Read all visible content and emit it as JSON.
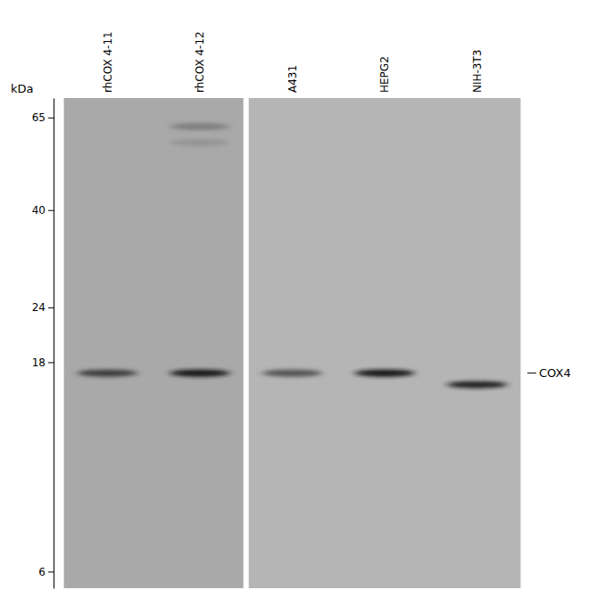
{
  "chart_data": {
    "type": "blot",
    "categories": [
      "rhCOX 4-11",
      "rhCOX 4-12",
      "A431",
      "HEPG2",
      "NIH-3T3"
    ],
    "values": [
      [
        17.0
      ],
      [
        62,
        57,
        17.0
      ],
      [
        17.0
      ],
      [
        17.0
      ],
      [
        16.0
      ]
    ],
    "intensity": [
      [
        0.72
      ],
      [
        0.28,
        0.14,
        0.97
      ],
      [
        0.6
      ],
      [
        0.97
      ],
      [
        0.92
      ]
    ],
    "colors": [
      "#a9a9a9",
      "#a9a9a9",
      "#b5b5b5",
      "#b5b5b5",
      "#b5b5b5"
    ],
    "ylabel": "kDa",
    "log": "y",
    "ylim": [
      5.5,
      72
    ],
    "yticks": [
      6,
      18,
      24,
      40,
      65
    ],
    "annotations": [
      {
        "text": "COX4",
        "y": 17.0
      }
    ]
  }
}
